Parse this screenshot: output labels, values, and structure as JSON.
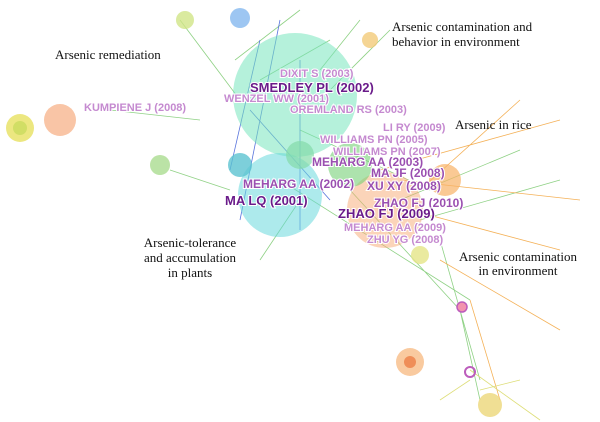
{
  "clusters": [
    {
      "lines": [
        "Arsenic remediation"
      ]
    },
    {
      "lines": [
        "Arsenic contamination and",
        "behavior in environment"
      ]
    },
    {
      "lines": [
        "Arsenic in rice"
      ]
    },
    {
      "lines": [
        "Arsenic-tolerance",
        "and accumulation",
        "in plants"
      ]
    },
    {
      "lines": [
        "Arsenic contamination",
        "in environment"
      ]
    }
  ],
  "nodes": [
    {
      "label": "DIXIT S (2003)"
    },
    {
      "label": "SMEDLEY PL (2002)"
    },
    {
      "label": "WENZEL WW (2001)"
    },
    {
      "label": "KUMPIENE J (2008)"
    },
    {
      "label": "OREMLAND RS (2003)"
    },
    {
      "label": "LI RY (2009)"
    },
    {
      "label": "WILLIAMS PN (2005)"
    },
    {
      "label": "WILLIAMS PN (2007)"
    },
    {
      "label": "MEHARG AA (2003)"
    },
    {
      "label": "MA JF (2008)"
    },
    {
      "label": "XU XY (2008)"
    },
    {
      "label": "MEHARG AA (2002)"
    },
    {
      "label": "MA LQ (2001)"
    },
    {
      "label": "ZHAO FJ (2010)"
    },
    {
      "label": "ZHAO FJ (2009)"
    },
    {
      "label": "MEHARG AA (2009)"
    },
    {
      "label": "ZHU YG (2008)"
    }
  ]
}
